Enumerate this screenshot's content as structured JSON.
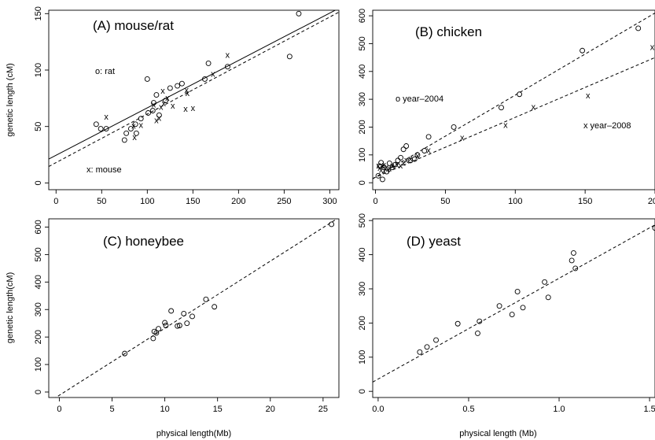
{
  "chart_data": [
    {
      "id": "A",
      "type": "scatter",
      "title": "(A) mouse/rat",
      "xlabel": "",
      "ylabel": "genetic length (cM)",
      "xlim": [
        -8,
        310
      ],
      "ylim": [
        -6,
        153
      ],
      "xticks": [
        0,
        50,
        100,
        150,
        200,
        250,
        300
      ],
      "yticks": [
        0,
        50,
        100,
        150
      ],
      "series": [
        {
          "marker": "o",
          "points": [
            [
              44,
              52
            ],
            [
              49,
              48
            ],
            [
              55,
              48
            ],
            [
              75,
              38
            ],
            [
              77,
              44
            ],
            [
              82,
              48
            ],
            [
              87,
              52
            ],
            [
              88,
              44
            ],
            [
              100,
              92
            ],
            [
              101,
              62
            ],
            [
              106,
              64
            ],
            [
              107,
              71
            ],
            [
              110,
              78
            ],
            [
              113,
              60
            ],
            [
              125,
              84
            ],
            [
              133,
              86
            ],
            [
              138,
              88
            ],
            [
              163,
              92
            ],
            [
              167,
              106
            ],
            [
              188,
              103
            ],
            [
              256,
              112
            ],
            [
              266,
              150
            ],
            [
              93,
              57
            ],
            [
              120,
              73
            ]
          ]
        },
        {
          "marker": "x",
          "points": [
            [
              55,
              58
            ],
            [
              85,
              50
            ],
            [
              86,
              40
            ],
            [
              93,
              51
            ],
            [
              107,
              69
            ],
            [
              110,
              55
            ],
            [
              113,
              57
            ],
            [
              115,
              67
            ],
            [
              117,
              81
            ],
            [
              122,
              75
            ],
            [
              128,
              68
            ],
            [
              142,
              65
            ],
            [
              143,
              82
            ],
            [
              150,
              66
            ],
            [
              172,
              96
            ],
            [
              188,
              113
            ],
            [
              118,
              70
            ],
            [
              144,
              79
            ]
          ]
        }
      ],
      "lines": [
        {
          "style": "solid",
          "intercept": 24.5,
          "slope": 0.42
        },
        {
          "style": "dashed",
          "intercept": 18,
          "slope": 0.43
        }
      ],
      "annotations": [
        "o: rat",
        "x: mouse"
      ]
    },
    {
      "id": "B",
      "type": "scatter",
      "title": "(B) chicken",
      "xlabel": "",
      "ylabel": "",
      "xlim": [
        -2,
        200
      ],
      "ylim": [
        -25,
        620
      ],
      "xticks": [
        0,
        50,
        100,
        150,
        200
      ],
      "yticks": [
        0,
        100,
        200,
        300,
        400,
        500,
        600
      ],
      "series": [
        {
          "marker": "o",
          "points": [
            [
              2,
              25
            ],
            [
              3,
              60
            ],
            [
              4,
              72
            ],
            [
              5,
              12
            ],
            [
              6,
              55
            ],
            [
              8,
              40
            ],
            [
              10,
              70
            ],
            [
              12,
              55
            ],
            [
              14,
              65
            ],
            [
              16,
              80
            ],
            [
              18,
              90
            ],
            [
              20,
              120
            ],
            [
              22,
              132
            ],
            [
              25,
              80
            ],
            [
              28,
              85
            ],
            [
              30,
              100
            ],
            [
              35,
              115
            ],
            [
              38,
              165
            ],
            [
              56,
              200
            ],
            [
              90,
              270
            ],
            [
              103,
              318
            ],
            [
              148,
              475
            ],
            [
              188,
              555
            ]
          ]
        },
        {
          "marker": "x",
          "points": [
            [
              2,
              60
            ],
            [
              3,
              52
            ],
            [
              4,
              45
            ],
            [
              5,
              58
            ],
            [
              6,
              62
            ],
            [
              7,
              48
            ],
            [
              8,
              55
            ],
            [
              10,
              50
            ],
            [
              12,
              60
            ],
            [
              15,
              65
            ],
            [
              18,
              60
            ],
            [
              20,
              70
            ],
            [
              22,
              80
            ],
            [
              25,
              85
            ],
            [
              30,
              95
            ],
            [
              38,
              115
            ],
            [
              62,
              160
            ],
            [
              93,
              205
            ],
            [
              113,
              270
            ],
            [
              152,
              312
            ],
            [
              198,
              485
            ]
          ]
        }
      ],
      "lines": [
        {
          "style": "dashed",
          "intercept": 20,
          "slope": 2.95
        },
        {
          "style": "dashed",
          "intercept": 20,
          "slope": 2.15
        }
      ],
      "annotations": [
        "o year–2004",
        "x year–2008"
      ]
    },
    {
      "id": "C",
      "type": "scatter",
      "title": "(C) honeybee",
      "xlabel": "physical length(Mb)",
      "ylabel": "genetic length(cM)",
      "xlim": [
        -1,
        26.5
      ],
      "ylim": [
        -20,
        630
      ],
      "xticks": [
        0,
        5,
        10,
        15,
        20,
        25
      ],
      "yticks": [
        0,
        100,
        200,
        300,
        400,
        500,
        600
      ],
      "series": [
        {
          "marker": "o",
          "points": [
            [
              6.2,
              140
            ],
            [
              8.9,
              195
            ],
            [
              9.0,
              220
            ],
            [
              9.2,
              215
            ],
            [
              9.4,
              230
            ],
            [
              10.0,
              252
            ],
            [
              10.1,
              242
            ],
            [
              10.6,
              295
            ],
            [
              11.2,
              240
            ],
            [
              11.4,
              242
            ],
            [
              11.8,
              285
            ],
            [
              12.1,
              250
            ],
            [
              12.6,
              275
            ],
            [
              13.9,
              337
            ],
            [
              14.7,
              310
            ],
            [
              25.8,
              610
            ]
          ]
        }
      ],
      "lines": [
        {
          "style": "dashed",
          "intercept": -12,
          "slope": 24.4
        }
      ],
      "annotations": []
    },
    {
      "id": "D",
      "type": "scatter",
      "title": "(D) yeast",
      "xlabel": "physical length (Mb)",
      "ylabel": "",
      "xlim": [
        -0.03,
        1.53
      ],
      "ylim": [
        -18,
        505
      ],
      "xticks": [
        0.0,
        0.5,
        1.0,
        1.5
      ],
      "yticks": [
        0,
        100,
        200,
        300,
        400,
        500
      ],
      "series": [
        {
          "marker": "o",
          "points": [
            [
              0.23,
              115
            ],
            [
              0.27,
              130
            ],
            [
              0.32,
              150
            ],
            [
              0.44,
              198
            ],
            [
              0.55,
              170
            ],
            [
              0.56,
              205
            ],
            [
              0.67,
              250
            ],
            [
              0.74,
              225
            ],
            [
              0.77,
              292
            ],
            [
              0.8,
              245
            ],
            [
              0.92,
              320
            ],
            [
              0.94,
              275
            ],
            [
              1.07,
              383
            ],
            [
              1.08,
              405
            ],
            [
              1.09,
              360
            ],
            [
              1.53,
              478
            ]
          ]
        }
      ],
      "lines": [
        {
          "style": "dashed",
          "intercept": 36,
          "slope": 295
        }
      ],
      "annotations": []
    }
  ]
}
